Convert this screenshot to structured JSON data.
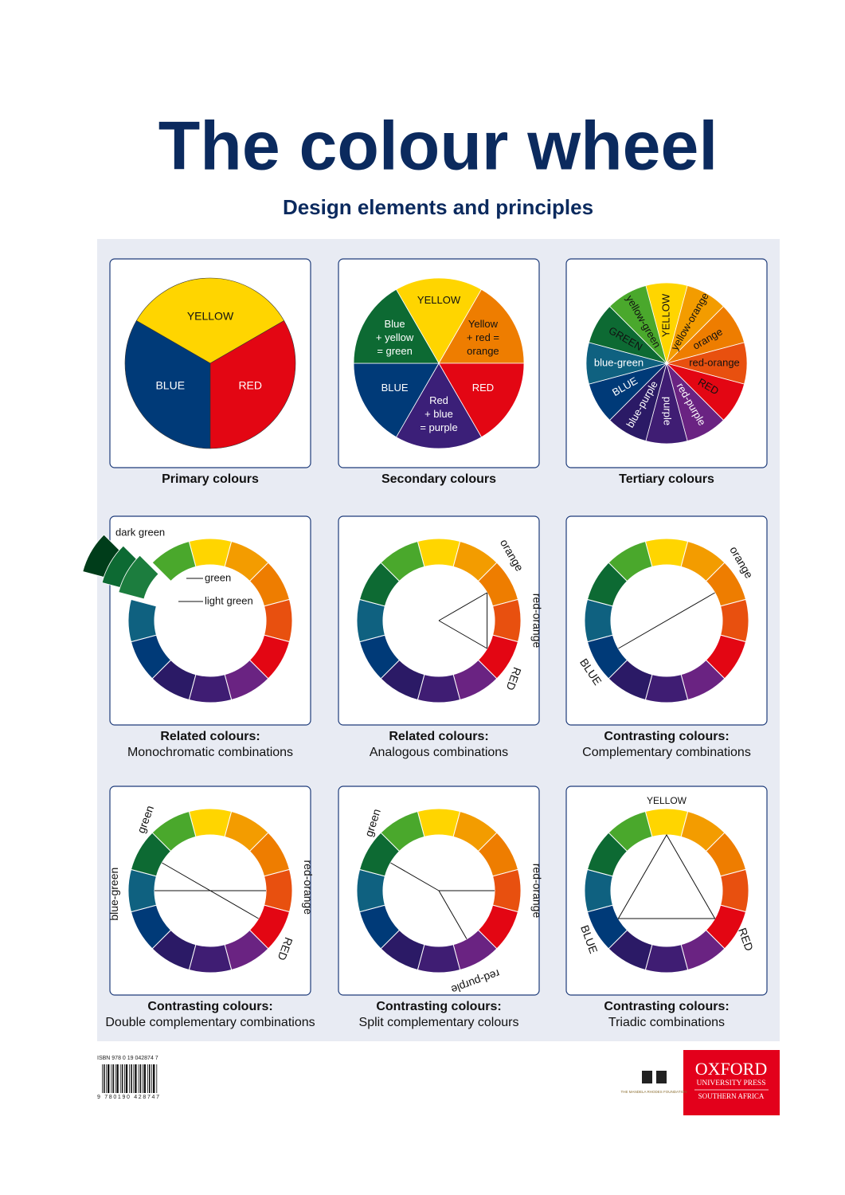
{
  "title": "The colour wheel",
  "subtitle": "Design elements and principles",
  "panels": [
    {
      "caption": {
        "title": "Primary colours"
      },
      "labels": [
        "YELLOW",
        "BLUE",
        "RED"
      ]
    },
    {
      "caption": {
        "title": "Secondary colours"
      },
      "labels": [
        [
          "YELLOW"
        ],
        [
          "Yellow",
          "+ red =",
          "orange"
        ],
        [
          "RED"
        ],
        [
          "Red",
          "+ blue",
          "= purple"
        ],
        [
          "BLUE"
        ],
        [
          "Blue",
          "+ yellow",
          "= green"
        ]
      ]
    },
    {
      "caption": {
        "title": "Tertiary colours"
      },
      "labels": [
        "YELLOW",
        "yellow-orange",
        "orange",
        "red-orange",
        "RED",
        "red-purple",
        "purple",
        "blue-purple",
        "BLUE",
        "blue-green",
        "GREEN",
        "yellow-green"
      ]
    },
    {
      "caption": {
        "title": "Related colours:",
        "subtitle": "Monochromatic combinations"
      },
      "labels": [
        "dark green",
        "green",
        "light green"
      ]
    },
    {
      "caption": {
        "title": "Related colours:",
        "subtitle": "Analogous combinations"
      },
      "labels": [
        "orange",
        "red-orange",
        "RED"
      ]
    },
    {
      "caption": {
        "title": "Contrasting colours:",
        "subtitle": "Complementary combinations"
      },
      "labels": [
        "orange",
        "BLUE"
      ]
    },
    {
      "caption": {
        "title": "Contrasting colours:",
        "subtitle": "Double complementary combinations"
      },
      "labels": [
        "green",
        "blue-green",
        "red-orange",
        "RED"
      ]
    },
    {
      "caption": {
        "title": "Contrasting colours:",
        "subtitle": "Split complementary colours"
      },
      "labels": [
        "green",
        "red-orange",
        "red-purple"
      ]
    },
    {
      "caption": {
        "title": "Contrasting colours:",
        "subtitle": "Triadic combinations"
      },
      "labels": [
        "YELLOW",
        "BLUE",
        "RED"
      ]
    }
  ],
  "footer": {
    "isbn": "ISBN 978 0 19 042874 7",
    "barcode_digits": "9 780190 428747",
    "foundation": "THE MANDELA RHODES FOUNDATION",
    "publisher": [
      "OXFORD",
      "UNIVERSITY PRESS",
      "SOUTHERN AFRICA"
    ]
  }
}
